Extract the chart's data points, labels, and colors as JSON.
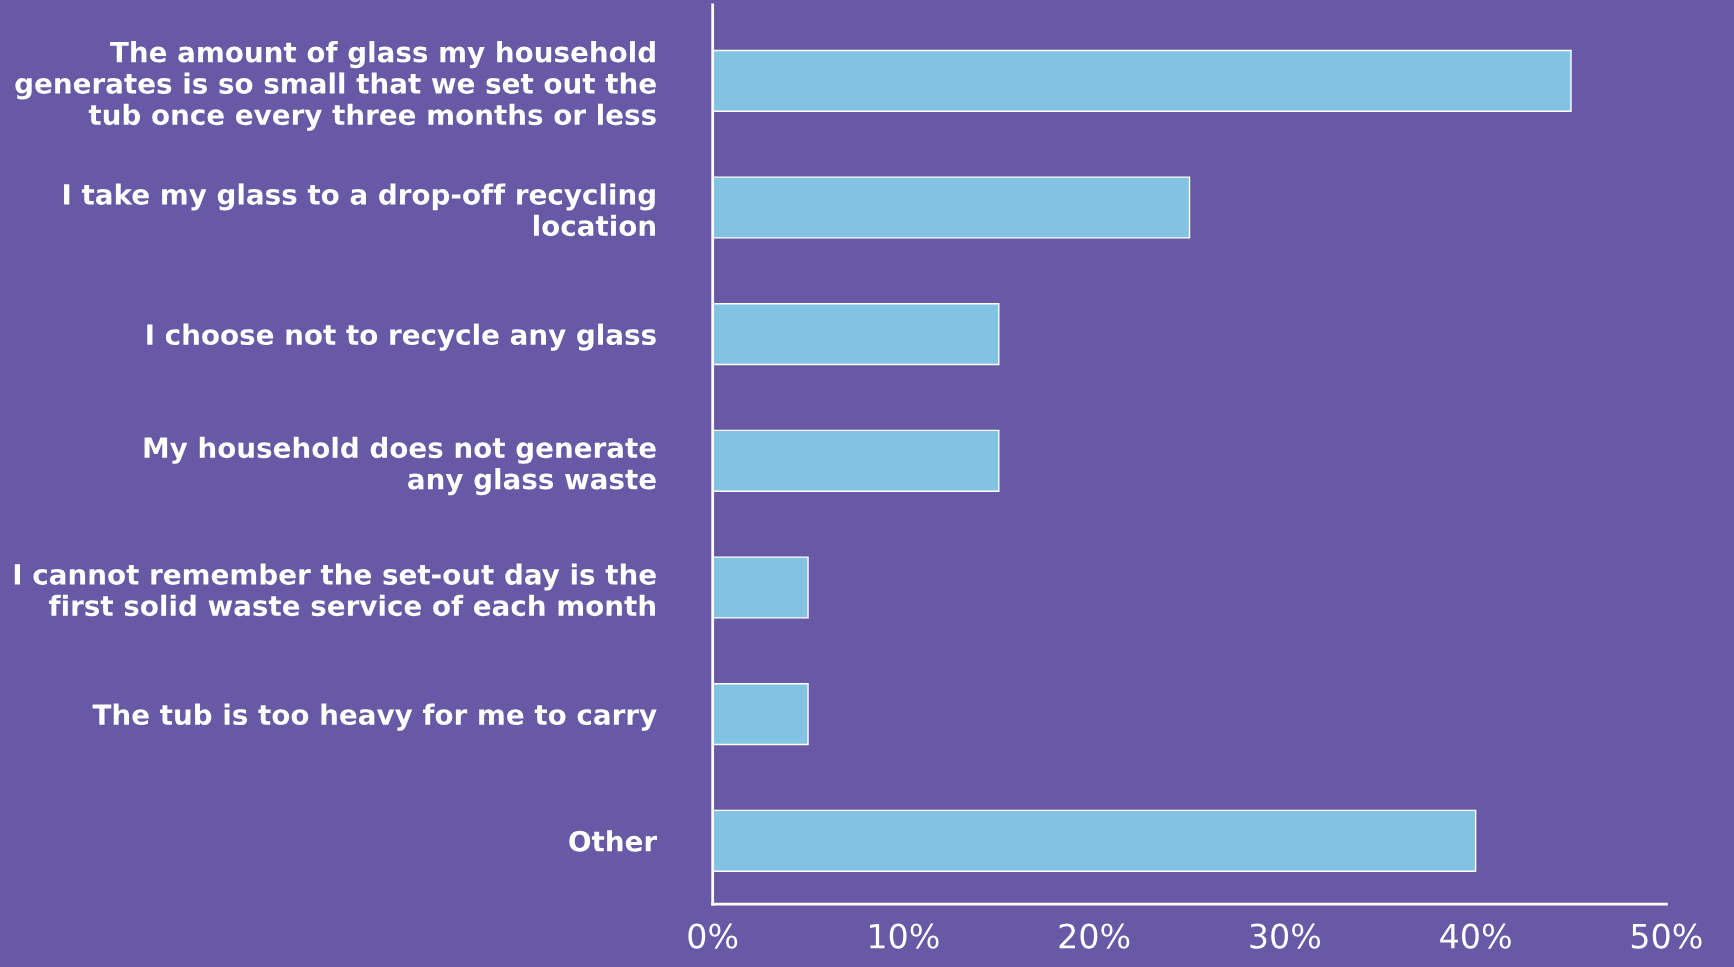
{
  "chart_data": {
    "type": "bar",
    "orientation": "horizontal",
    "categories": [
      "The amount of glass my household\ngenerates is so small that we set out the\ntub once every three months or less",
      "I take my glass to a drop-off recycling\nlocation",
      "I choose not to recycle any glass",
      "My household does not generate\nany glass waste",
      "I cannot remember the set-out day is the\nfirst solid waste service of each month",
      "The tub is too heavy for me to carry",
      "Other"
    ],
    "values": [
      45,
      25,
      15,
      15,
      5,
      5,
      40
    ],
    "color": "#82c3e3",
    "xlim": [
      0,
      50
    ],
    "xticks": [
      {
        "value": 0,
        "label": "0%"
      },
      {
        "value": 10,
        "label": "10%"
      },
      {
        "value": 20,
        "label": "20%"
      },
      {
        "value": 30,
        "label": "30%"
      },
      {
        "value": 40,
        "label": "40%"
      },
      {
        "value": 50,
        "label": "50%"
      }
    ],
    "grid": false,
    "legend": false
  }
}
